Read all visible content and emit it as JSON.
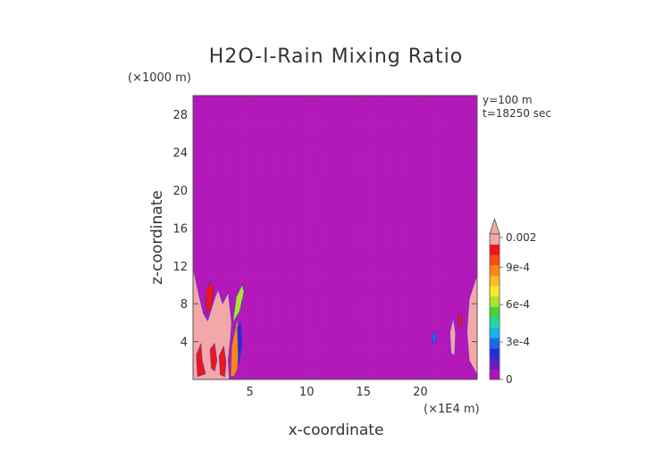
{
  "chart_data": {
    "type": "heatmap",
    "title": "H2O-l-Rain Mixing Ratio",
    "xlabel": "x-coordinate",
    "ylabel": "z-coordinate",
    "x_unit": "(×1E4 m)",
    "y_unit": "(×1000 m)",
    "annotations": [
      "y=100 m",
      "t=18250 sec"
    ],
    "xlim": [
      0,
      25
    ],
    "ylim": [
      0,
      30
    ],
    "x_ticks": [
      5,
      10,
      15,
      20
    ],
    "y_ticks": [
      4,
      8,
      12,
      16,
      20,
      24,
      28
    ],
    "background_value": 0,
    "background_color": "#b012b6",
    "colorbar": {
      "range": [
        0,
        0.002
      ],
      "tick_labels": [
        "0",
        "3e-4",
        "6e-4",
        "9e-4",
        "0.002"
      ],
      "tick_values": [
        0,
        0.0003,
        0.0006,
        0.0009,
        0.002
      ],
      "levels": [
        {
          "color": "#b012b6"
        },
        {
          "color": "#6a1cc4"
        },
        {
          "color": "#2230d6"
        },
        {
          "color": "#1c6ae6"
        },
        {
          "color": "#19b4ea"
        },
        {
          "color": "#24d8a4"
        },
        {
          "color": "#46d23a"
        },
        {
          "color": "#b0e030"
        },
        {
          "color": "#ffe52e"
        },
        {
          "color": "#ffbb22"
        },
        {
          "color": "#ff8614"
        },
        {
          "color": "#ff4a12"
        },
        {
          "color": "#ee1616"
        },
        {
          "color": "#f4a7a7"
        }
      ],
      "extend": "max"
    },
    "regions": [
      {
        "value": 0.002,
        "poly": [
          [
            0,
            0
          ],
          [
            0,
            11.8
          ],
          [
            0.5,
            9
          ],
          [
            0.9,
            7
          ],
          [
            1.3,
            6.2
          ],
          [
            1.8,
            8.2
          ],
          [
            2.2,
            9.5
          ],
          [
            2.6,
            8
          ],
          [
            3.1,
            9.2
          ],
          [
            3.4,
            6
          ],
          [
            3.3,
            4.5
          ],
          [
            3.1,
            2
          ],
          [
            3.2,
            0
          ]
        ]
      },
      {
        "value": 0.001,
        "poly": [
          [
            0.4,
            0.3
          ],
          [
            0.3,
            2.6
          ],
          [
            0.7,
            3.8
          ],
          [
            0.8,
            2
          ],
          [
            1.1,
            0.6
          ]
        ]
      },
      {
        "value": 0.001,
        "poly": [
          [
            1.6,
            1.2
          ],
          [
            1.5,
            3.2
          ],
          [
            1.9,
            3.8
          ],
          [
            2.1,
            2
          ],
          [
            1.9,
            0.9
          ]
        ]
      },
      {
        "value": 0.0012,
        "poly": [
          [
            2.4,
            0.5
          ],
          [
            2.3,
            2.5
          ],
          [
            2.7,
            3.5
          ],
          [
            2.9,
            1.8
          ],
          [
            2.8,
            0.3
          ]
        ]
      },
      {
        "value": 0.0011,
        "poly": [
          [
            1.2,
            7
          ],
          [
            1.1,
            9.2
          ],
          [
            1.5,
            10.4
          ],
          [
            1.8,
            9.6
          ],
          [
            1.6,
            7.4
          ]
        ]
      },
      {
        "value": 0.0009,
        "poly": [
          [
            3.3,
            0.3
          ],
          [
            3.4,
            3.5
          ],
          [
            3.9,
            6.5
          ],
          [
            4.1,
            4
          ],
          [
            3.9,
            1
          ],
          [
            3.6,
            0.3
          ]
        ]
      },
      {
        "value": 0.0006,
        "poly": [
          [
            3.5,
            6
          ],
          [
            3.8,
            8.7
          ],
          [
            4.3,
            10
          ],
          [
            4.5,
            9.3
          ],
          [
            4.1,
            7.2
          ]
        ]
      },
      {
        "value": 0.0002,
        "poly": [
          [
            4,
            1.5
          ],
          [
            3.9,
            5.5
          ],
          [
            4.2,
            6
          ],
          [
            4.3,
            3.5
          ]
        ]
      },
      {
        "value": 0.002,
        "poly": [
          [
            24.3,
            2
          ],
          [
            24.1,
            5
          ],
          [
            24.3,
            8.5
          ],
          [
            24.7,
            10
          ],
          [
            25,
            11
          ],
          [
            25,
            0.5
          ]
        ]
      },
      {
        "value": 0.002,
        "poly": [
          [
            22.7,
            2.8
          ],
          [
            22.6,
            5
          ],
          [
            22.9,
            6.5
          ],
          [
            23.1,
            4.8
          ],
          [
            23,
            2.5
          ]
        ]
      },
      {
        "value": 0.0015,
        "poly": [
          [
            23.4,
            5.5
          ],
          [
            23.3,
            6.8
          ],
          [
            23.6,
            7
          ],
          [
            23.7,
            5.6
          ]
        ]
      },
      {
        "value": 0.0003,
        "poly": [
          [
            21.1,
            3.8
          ],
          [
            21,
            4.8
          ],
          [
            21.3,
            5
          ],
          [
            21.4,
            4
          ]
        ]
      }
    ]
  }
}
